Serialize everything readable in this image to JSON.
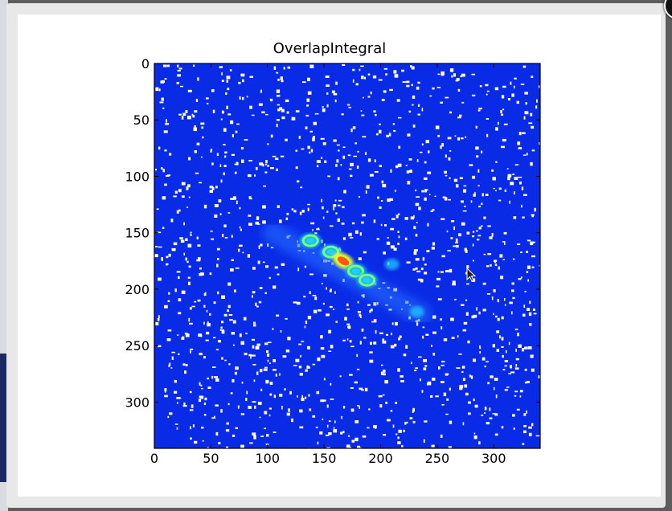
{
  "dialog": {
    "close_glyph": "✕"
  },
  "figure": {
    "title": "OverlapIntegral",
    "colormap": "jet",
    "background_color": "#0a2be6",
    "speckle_color": "#ffffff"
  },
  "chart_data": {
    "type": "heatmap",
    "title": "OverlapIntegral",
    "xlabel": "",
    "ylabel": "",
    "xlim": [
      0,
      341
    ],
    "ylim": [
      341,
      0
    ],
    "x_ticks": [
      "0",
      "50",
      "100",
      "150",
      "200",
      "250",
      "300"
    ],
    "y_ticks": [
      "0",
      "50",
      "100",
      "150",
      "200",
      "250",
      "300"
    ],
    "features": [
      {
        "kind": "diffuse-streak",
        "from": [
          105,
          150
        ],
        "to": [
          235,
          222
        ]
      },
      {
        "kind": "peak-ring",
        "x": 138,
        "y": 157
      },
      {
        "kind": "peak-ring",
        "x": 156,
        "y": 167
      },
      {
        "kind": "peak-max",
        "x": 167,
        "y": 175
      },
      {
        "kind": "peak-ring",
        "x": 178,
        "y": 184
      },
      {
        "kind": "peak-ring",
        "x": 188,
        "y": 192
      },
      {
        "kind": "faint-spot",
        "x": 210,
        "y": 178
      },
      {
        "kind": "faint-spot",
        "x": 232,
        "y": 220
      }
    ]
  }
}
